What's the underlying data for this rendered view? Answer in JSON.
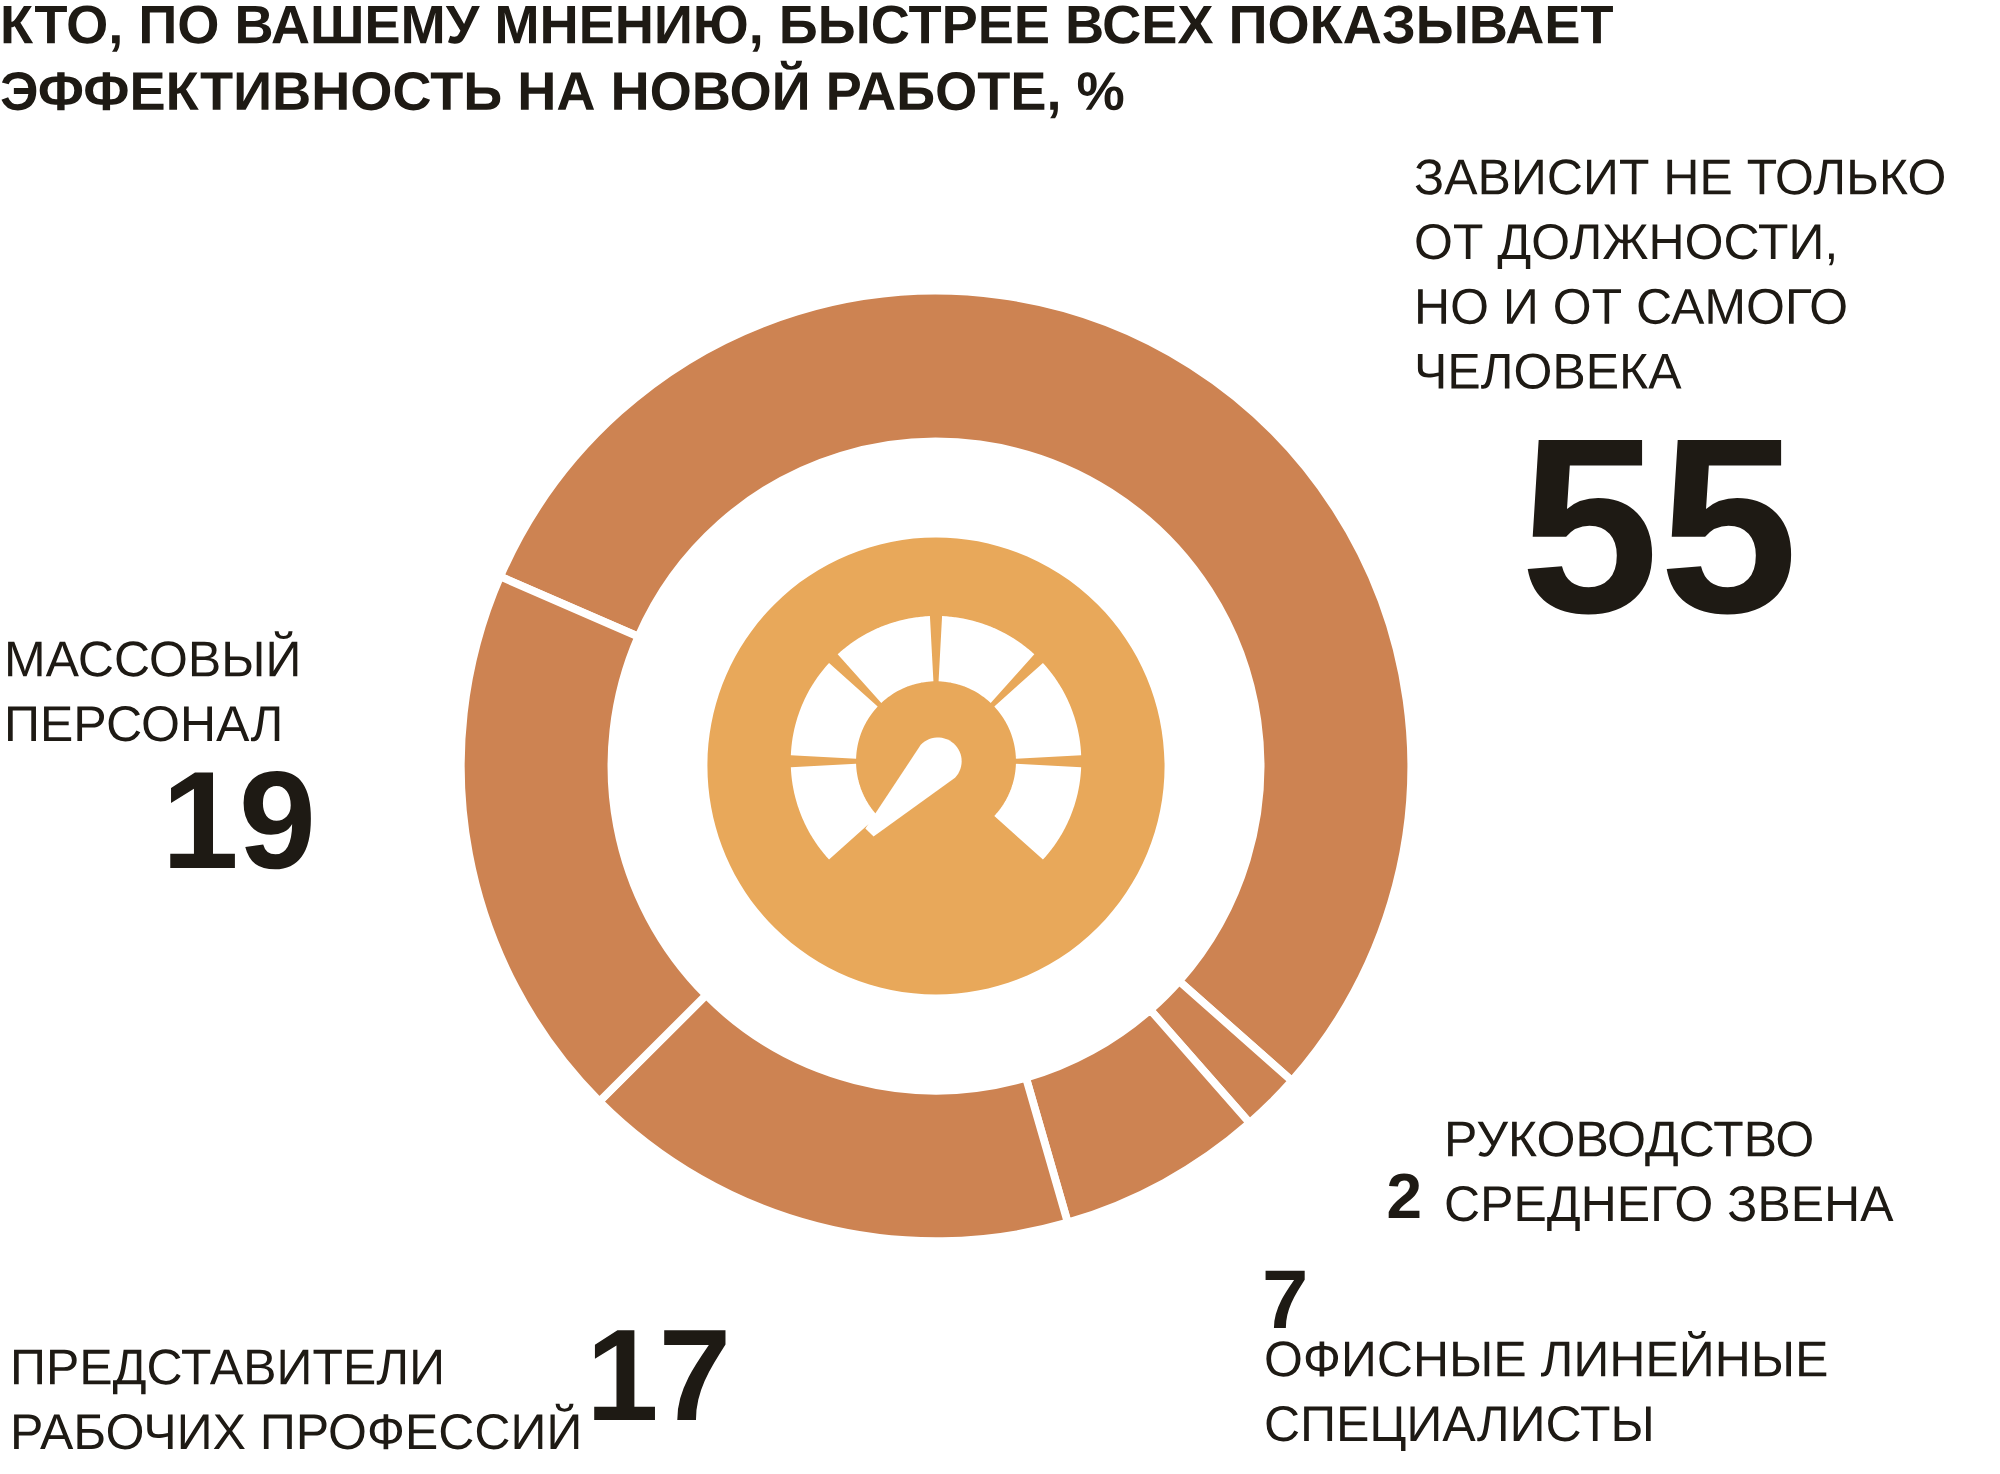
{
  "chart_data": {
    "type": "donut",
    "title": "КТО, ПО ВАШЕМУ МНЕНИЮ, БЫСТРЕЕ ВСЕХ ПОКАЗЫВАЕТ\nЭФФЕКТИВНОСТЬ НА НОВОЙ РАБОТЕ, %",
    "categories": [
      "ЗАВИСИТ НЕ ТОЛЬКО\nОТ ДОЛЖНОСТИ,\nНО И ОТ САМОГО\nЧЕЛОВЕКА",
      "РУКОВОДСТВО\nСРЕДНЕГО ЗВЕНА",
      "ОФИСНЫЕ ЛИНЕЙНЫЕ\nСПЕЦИАЛИСТЫ",
      "ПРЕДСТАВИТЕЛИ\nРАБОЧИХ ПРОФЕССИЙ",
      "МАССОВЫЙ\nПЕРСОНАЛ"
    ],
    "values": [
      55,
      2,
      7,
      17,
      19
    ],
    "colors": [
      "#cd8352",
      "#cd8352",
      "#cd8352",
      "#cd8352",
      "#cd8352"
    ],
    "data_labels": true
  }
}
